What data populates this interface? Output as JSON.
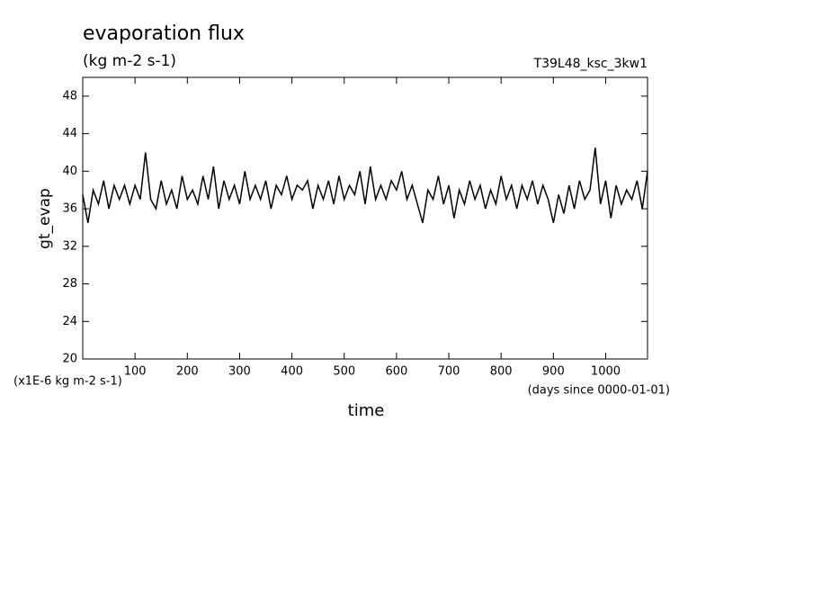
{
  "chart_data": {
    "type": "line",
    "title": "evaporation flux",
    "subtitle": "(kg m-2 s-1)",
    "annotation": "T39L48_ksc_3kw1",
    "y_label": "gt_evap",
    "y_unit_label": "(x1E-6 kg m-2 s-1)",
    "x_label": "time",
    "x_unit_label": "(days since 0000-01-01)",
    "color": "#000000",
    "x": [
      0,
      10,
      20,
      30,
      40,
      50,
      60,
      70,
      80,
      90,
      100,
      110,
      120,
      130,
      140,
      150,
      160,
      170,
      180,
      190,
      200,
      210,
      220,
      230,
      240,
      250,
      260,
      270,
      280,
      290,
      300,
      310,
      320,
      330,
      340,
      350,
      360,
      370,
      380,
      390,
      400,
      410,
      420,
      430,
      440,
      450,
      460,
      470,
      480,
      490,
      500,
      510,
      520,
      530,
      540,
      550,
      560,
      570,
      580,
      590,
      600,
      610,
      620,
      630,
      640,
      650,
      660,
      670,
      680,
      690,
      700,
      710,
      720,
      730,
      740,
      750,
      760,
      770,
      780,
      790,
      800,
      810,
      820,
      830,
      840,
      850,
      860,
      870,
      880,
      890,
      900,
      910,
      920,
      930,
      940,
      950,
      960,
      970,
      980,
      990,
      1000,
      1010,
      1020,
      1030,
      1040,
      1050,
      1060,
      1070,
      1080
    ],
    "values": [
      37.5,
      34.5,
      38,
      36.5,
      39,
      36,
      38.5,
      37,
      38.5,
      36.5,
      38.5,
      37,
      42,
      37,
      36,
      39,
      36.5,
      38,
      36,
      39.5,
      37,
      38,
      36.5,
      39.5,
      37,
      40.5,
      36,
      39,
      37,
      38.5,
      36.5,
      40,
      37,
      38.5,
      37,
      39,
      36,
      38.5,
      37.5,
      39.5,
      37,
      38.5,
      38,
      39,
      36,
      38.5,
      37,
      39,
      36.5,
      39.5,
      37,
      38.5,
      37.5,
      40,
      36.5,
      40.5,
      37,
      38.5,
      37,
      39,
      38,
      40,
      37,
      38.5,
      36.5,
      34.5,
      38,
      37,
      39.5,
      36.5,
      38.5,
      35,
      38,
      36.5,
      39,
      37,
      38.5,
      36,
      38,
      36.5,
      39.5,
      37,
      38.5,
      36,
      38.5,
      37,
      39,
      36.5,
      38.5,
      37,
      34.5,
      37.5,
      35.5,
      38.5,
      36,
      39,
      37,
      38,
      42.5,
      36.5,
      39,
      35,
      38.5,
      36.5,
      38,
      37,
      39,
      36,
      40
    ],
    "xlim": [
      0,
      1080
    ],
    "xticks": [
      100,
      200,
      300,
      400,
      500,
      600,
      700,
      800,
      900,
      1000
    ],
    "ylim": [
      20,
      50
    ],
    "yticks": [
      20,
      24,
      28,
      32,
      36,
      40,
      44,
      48
    ]
  }
}
